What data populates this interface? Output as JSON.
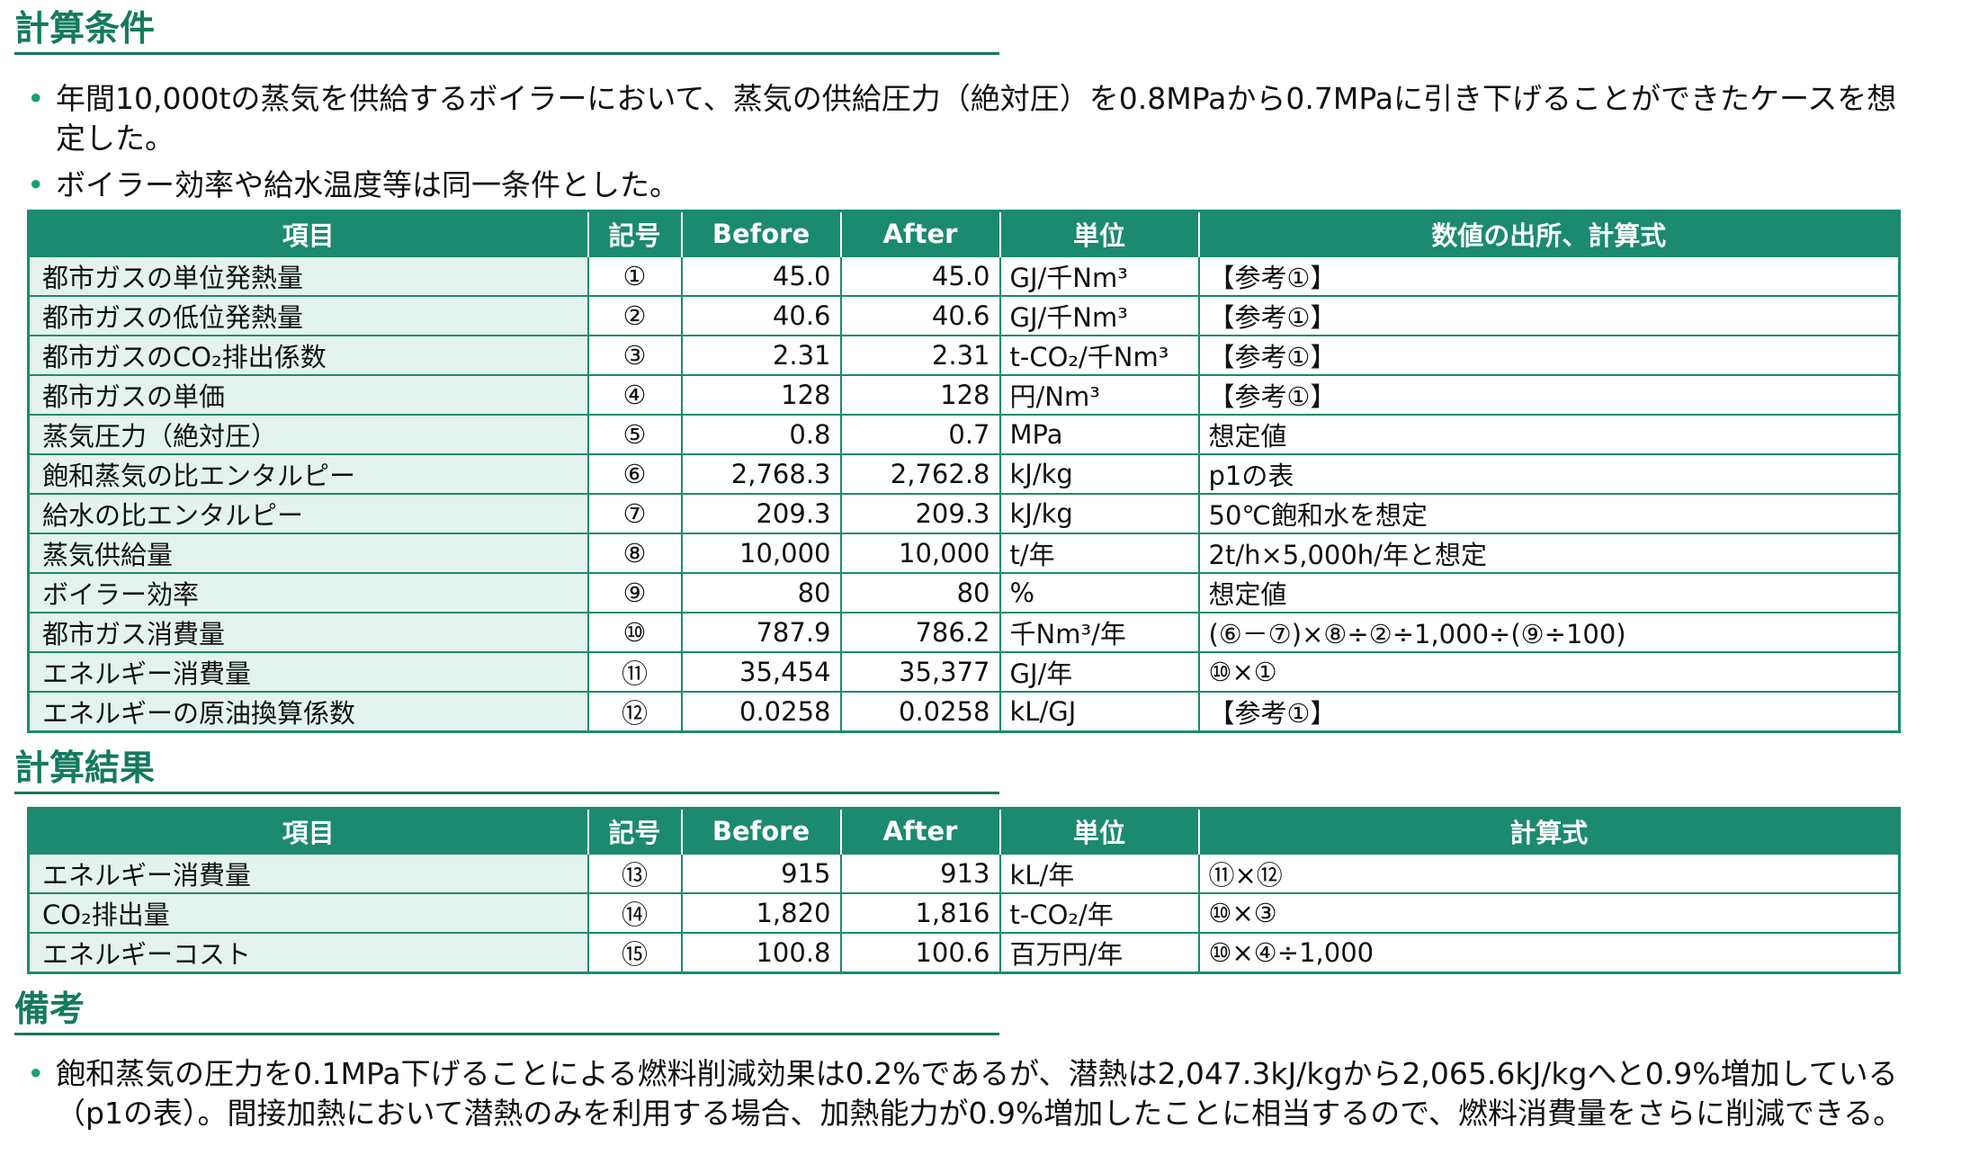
{
  "conditions": {
    "heading": "計算条件",
    "bullets": [
      "年間10,000tの蒸気を供給するボイラーにおいて、蒸気の供給圧力（絶対圧）を0.8MPaから0.7MPaに引き下げることができたケースを想定した。",
      "ボイラー効率や給水温度等は同一条件とした。"
    ],
    "table": {
      "headers": [
        "項目",
        "記号",
        "Before",
        "After",
        "単位",
        "数値の出所、計算式"
      ],
      "rows": [
        {
          "item": "都市ガスの単位発熱量",
          "symbol": "①",
          "before": "45.0",
          "after": "45.0",
          "unit": "GJ/千Nm³",
          "source": "【参考①】"
        },
        {
          "item": "都市ガスの低位発熱量",
          "symbol": "②",
          "before": "40.6",
          "after": "40.6",
          "unit": "GJ/千Nm³",
          "source": "【参考①】"
        },
        {
          "item": "都市ガスのCO₂排出係数",
          "symbol": "③",
          "before": "2.31",
          "after": "2.31",
          "unit": "t-CO₂/千Nm³",
          "source": "【参考①】"
        },
        {
          "item": "都市ガスの単価",
          "symbol": "④",
          "before": "128",
          "after": "128",
          "unit": "円/Nm³",
          "source": "【参考①】"
        },
        {
          "item": "蒸気圧力（絶対圧）",
          "symbol": "⑤",
          "before": "0.8",
          "after": "0.7",
          "unit": "MPa",
          "source": "想定値"
        },
        {
          "item": "飽和蒸気の比エンタルピー",
          "symbol": "⑥",
          "before": "2,768.3",
          "after": "2,762.8",
          "unit": "kJ/kg",
          "source": "p1の表"
        },
        {
          "item": "給水の比エンタルピー",
          "symbol": "⑦",
          "before": "209.3",
          "after": "209.3",
          "unit": "kJ/kg",
          "source": "50℃飽和水を想定"
        },
        {
          "item": "蒸気供給量",
          "symbol": "⑧",
          "before": "10,000",
          "after": "10,000",
          "unit": "t/年",
          "source": "2t/h×5,000h/年と想定"
        },
        {
          "item": "ボイラー効率",
          "symbol": "⑨",
          "before": "80",
          "after": "80",
          "unit": "%",
          "source": "想定値"
        },
        {
          "item": "都市ガス消費量",
          "symbol": "⑩",
          "before": "787.9",
          "after": "786.2",
          "unit": "千Nm³/年",
          "source": "(⑥－⑦)×⑧÷②÷1,000÷(⑨÷100)"
        },
        {
          "item": "エネルギー消費量",
          "symbol": "⑪",
          "before": "35,454",
          "after": "35,377",
          "unit": "GJ/年",
          "source": "⑩×①"
        },
        {
          "item": "エネルギーの原油換算係数",
          "symbol": "⑫",
          "before": "0.0258",
          "after": "0.0258",
          "unit": "kL/GJ",
          "source": "【参考①】"
        }
      ]
    }
  },
  "results": {
    "heading": "計算結果",
    "table": {
      "headers": [
        "項目",
        "記号",
        "Before",
        "After",
        "単位",
        "計算式"
      ],
      "rows": [
        {
          "item": "エネルギー消費量",
          "symbol": "⑬",
          "before": "915",
          "after": "913",
          "unit": "kL/年",
          "source": "⑪×⑫"
        },
        {
          "item": "CO₂排出量",
          "symbol": "⑭",
          "before": "1,820",
          "after": "1,816",
          "unit": "t-CO₂/年",
          "source": "⑩×③"
        },
        {
          "item": "エネルギーコスト",
          "symbol": "⑮",
          "before": "100.8",
          "after": "100.6",
          "unit": "百万円/年",
          "source": "⑩×④÷1,000"
        }
      ]
    }
  },
  "notes": {
    "heading": "備考",
    "bullets": [
      "飽和蒸気の圧力を0.1MPa下げることによる燃料削減効果は0.2%であるが、潜熱は2,047.3kJ/kgから2,065.6kJ/kgへと0.9%増加している（p1の表）。間接加熱において潜熱のみを利用する場合、加熱能力が0.9%増加したことに相当するので、燃料消費量をさらに削減できる。"
    ]
  },
  "colors": {
    "header_fill": "#1b8a6f",
    "item_cell_fill": "#e4f3ee",
    "heading_text": "#137a5e",
    "bullet": "#1a9e7a"
  }
}
